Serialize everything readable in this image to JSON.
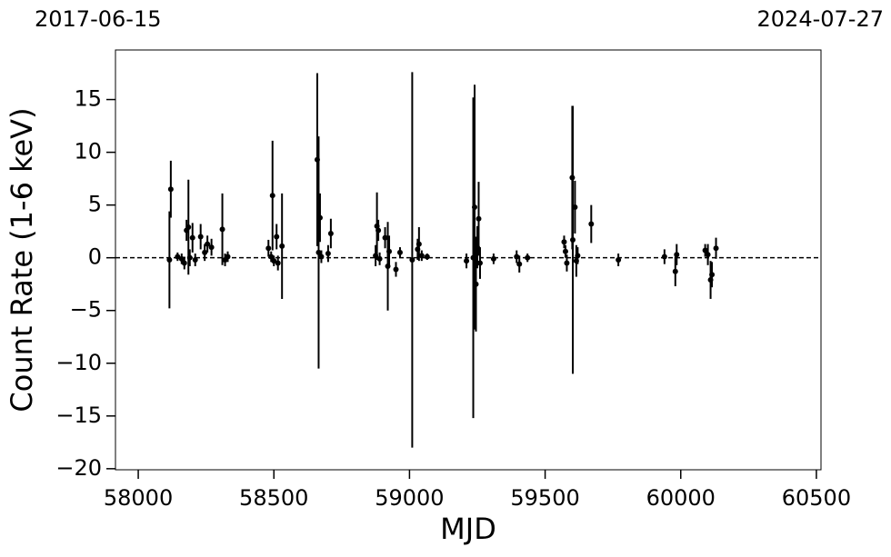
{
  "chart_data": {
    "type": "scatter",
    "annotations": [
      "2017-06-15",
      "2024-07-27"
    ],
    "xlabel": "MJD",
    "ylabel": "Count Rate (1-6 keV)",
    "xlim": [
      57916,
      60517
    ],
    "ylim": [
      -20.1,
      19.7
    ],
    "xticks": [
      58000,
      58500,
      59000,
      59500,
      60000,
      60500
    ],
    "yticks": [
      {
        "value": -20,
        "label": "−20"
      },
      {
        "value": -15,
        "label": "−15"
      },
      {
        "value": -10,
        "label": "−10"
      },
      {
        "value": -5,
        "label": "−5"
      },
      0,
      5,
      10,
      15
    ],
    "hline": 0,
    "color": "#000000",
    "x": [
      58115,
      58120,
      58145,
      58160,
      58170,
      58178,
      58185,
      58190,
      58200,
      58210,
      58230,
      58245,
      58255,
      58270,
      58310,
      58320,
      58330,
      58480,
      58490,
      58495,
      58500,
      58510,
      58515,
      58530,
      58660,
      58665,
      58670,
      58675,
      58700,
      58710,
      58875,
      58880,
      58885,
      58890,
      58910,
      58920,
      58925,
      58950,
      58965,
      59010,
      59030,
      59035,
      59045,
      59065,
      59210,
      59235,
      59240,
      59245,
      59250,
      59255,
      59260,
      59310,
      59395,
      59405,
      59435,
      59570,
      59575,
      59580,
      59600,
      59602,
      59610,
      59615,
      59620,
      59670,
      59770,
      59940,
      59980,
      59985,
      60090,
      60100,
      60110,
      60115,
      60130
    ],
    "values": [
      -0.2,
      6.5,
      0.1,
      -0.1,
      -0.5,
      2.6,
      2.9,
      0.0,
      1.9,
      -0.2,
      2.0,
      0.5,
      1.3,
      1.0,
      2.7,
      -0.2,
      0.1,
      0.9,
      0.1,
      5.9,
      -0.3,
      2.0,
      -0.5,
      1.1,
      9.3,
      0.5,
      3.8,
      0.1,
      0.4,
      2.3,
      0.2,
      3.0,
      2.6,
      -0.1,
      1.9,
      -0.8,
      0.6,
      -1.1,
      0.5,
      -0.2,
      0.8,
      1.3,
      0.2,
      0.1,
      -0.3,
      0.0,
      4.8,
      -2.5,
      1.0,
      3.7,
      -0.5,
      -0.1,
      0.1,
      -0.6,
      0.0,
      1.5,
      0.6,
      -0.5,
      7.6,
      1.7,
      4.8,
      -0.3,
      0.2,
      3.2,
      -0.2,
      0.1,
      -1.3,
      0.3,
      0.7,
      0.3,
      -2.1,
      -1.6,
      0.9
    ],
    "errors": [
      4.6,
      2.7,
      0.4,
      0.5,
      0.6,
      1.0,
      4.5,
      0.8,
      1.4,
      0.6,
      1.2,
      0.8,
      0.8,
      0.8,
      3.4,
      0.6,
      0.5,
      0.8,
      0.5,
      5.2,
      0.5,
      1.2,
      0.7,
      5.0,
      8.2,
      11,
      2.3,
      0.6,
      0.8,
      1.4,
      1.0,
      3.2,
      1.0,
      0.6,
      1.0,
      4.2,
      1.5,
      0.7,
      0.5,
      17.8,
      1.0,
      1.6,
      0.5,
      0.3,
      0.7,
      15.2,
      11.6,
      4.5,
      2.0,
      3.5,
      1.5,
      0.5,
      0.6,
      0.8,
      0.4,
      0.6,
      0.6,
      0.8,
      6.8,
      12.7,
      2.5,
      1.5,
      0.8,
      1.8,
      0.6,
      0.7,
      1.4,
      1.0,
      0.6,
      1.0,
      1.8,
      1.2,
      1.0
    ]
  }
}
